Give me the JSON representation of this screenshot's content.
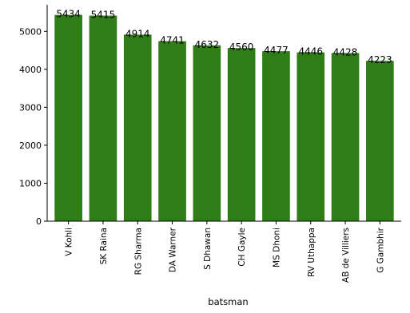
{
  "chart_data": {
    "type": "bar",
    "title": "",
    "xlabel": "batsman",
    "ylabel": "",
    "categories": [
      "V Kohli",
      "SK Raina",
      "RG Sharma",
      "DA Warner",
      "S Dhawan",
      "CH Gayle",
      "MS Dhoni",
      "RV Uthappa",
      "AB de Villiers",
      "G Gambhir"
    ],
    "values": [
      5434,
      5415,
      4914,
      4741,
      4632,
      4560,
      4477,
      4446,
      4428,
      4223
    ],
    "data_labels": [
      "5434",
      "5415",
      "4914",
      "4741",
      "4632",
      "4560",
      "4477",
      "4446",
      "4428",
      "4223"
    ],
    "yticks": [
      0,
      1000,
      2000,
      3000,
      4000,
      5000
    ],
    "ylim": [
      0,
      5700
    ],
    "bar_color": "#2e7d17",
    "grid": false,
    "legend": false
  }
}
